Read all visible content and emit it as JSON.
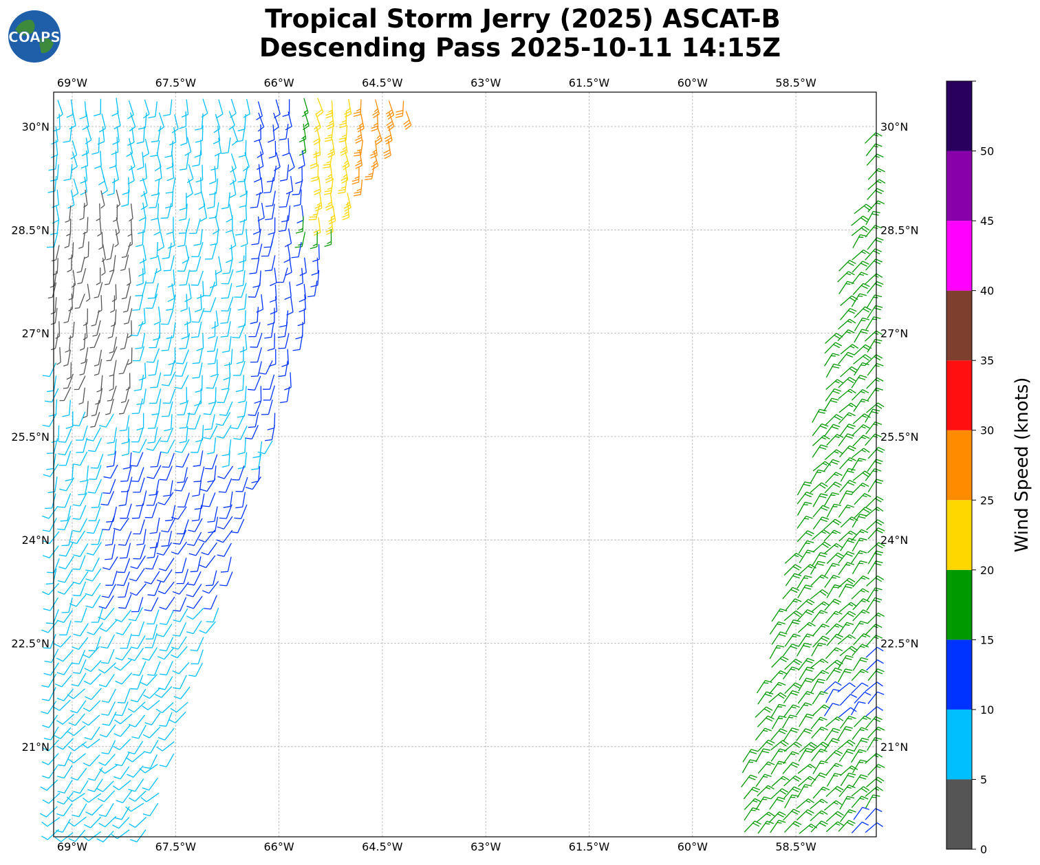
{
  "logo": {
    "text": "COAPS",
    "icon": "globe-logo-icon"
  },
  "title_line1": "Tropical Storm Jerry (2025) ASCAT-B",
  "title_line2": "Descending Pass 2025-10-11 14:15Z",
  "map": {
    "lon_range": [
      -69.25,
      -57.3
    ],
    "lat_range": [
      18.7,
      29.5
    ],
    "lon_ticks": [
      "69°W",
      "67.5°W",
      "66°W",
      "64.5°W",
      "63°W",
      "61.5°W",
      "60°W",
      "58.5°W"
    ],
    "lat_ticks": [
      "30°N",
      "28.5°N",
      "27°N",
      "25.5°N",
      "24°N",
      "22.5°N",
      "21°N"
    ],
    "gridlines": "dashed gray",
    "barb_type": "wind barbs (knots)"
  },
  "colorbar": {
    "label": "Wind Speed (knots)",
    "bounds": [
      0,
      5,
      10,
      15,
      20,
      25,
      30,
      35,
      40,
      45,
      50
    ],
    "tick_labels": [
      "0",
      "5",
      "10",
      "15",
      "20",
      "25",
      "30",
      "35",
      "40",
      "45",
      "50"
    ],
    "colors": [
      "#555555",
      "#00bfff",
      "#0033ff",
      "#009900",
      "#ffd700",
      "#ff8c00",
      "#ff0f0f",
      "#7f3f2f",
      "#ff00ff",
      "#8800aa",
      "#2a005e"
    ]
  },
  "swaths": [
    {
      "name": "west-swath",
      "corners_lonlat": [
        [
          -69.25,
          30.05
        ],
        [
          -65.45,
          30.05
        ],
        [
          -64.55,
          30.05
        ],
        [
          -65.95,
          27.5
        ],
        [
          -66.0,
          25.5
        ],
        [
          -66.9,
          23.5
        ],
        [
          -67.55,
          19.7
        ],
        [
          -69.25,
          19.7
        ]
      ]
    },
    {
      "name": "east-swath",
      "corners_lonlat": [
        [
          -57.3,
          30.05
        ],
        [
          -57.3,
          19.7
        ],
        [
          -59.5,
          19.7
        ],
        [
          -57.3,
          30.05
        ]
      ]
    }
  ]
}
